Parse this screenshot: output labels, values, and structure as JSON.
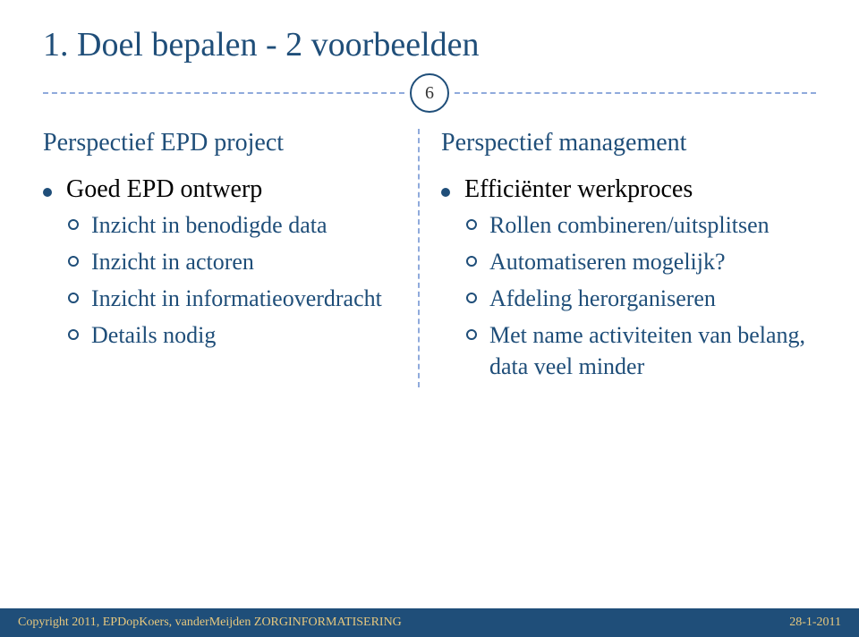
{
  "colors": {
    "primary": "#1f4e79",
    "dashed": "#8faadc",
    "footer_bg": "#1f4e79",
    "footer_text": "#e7c87e",
    "body_text": "#000000",
    "background": "#ffffff"
  },
  "typography": {
    "title_fontsize": 38,
    "heading_fontsize": 28,
    "bullet_fontsize": 28,
    "sub_fontsize": 26,
    "footer_fontsize": 14,
    "font_family": "Georgia, serif"
  },
  "title": "1. Doel bepalen - 2 voorbeelden",
  "slide_number": "6",
  "left": {
    "heading": "Perspectief EPD project",
    "bullet": "Goed EPD ontwerp",
    "subs": [
      "Inzicht in benodigde data",
      "Inzicht in actoren",
      "Inzicht in informatieoverdracht",
      "Details nodig"
    ]
  },
  "right": {
    "heading": "Perspectief management",
    "bullet": "Efficiënter werkproces",
    "subs": [
      "Rollen combineren/uitsplitsen",
      "Automatiseren mogelijk?",
      "Afdeling herorganiseren",
      "Met name activiteiten van belang, data veel minder"
    ]
  },
  "footer": {
    "copyright": "Copyright 2011, EPDopKoers, vanderMeijden ZORGINFORMATISERING",
    "date": "28-1-2011"
  }
}
